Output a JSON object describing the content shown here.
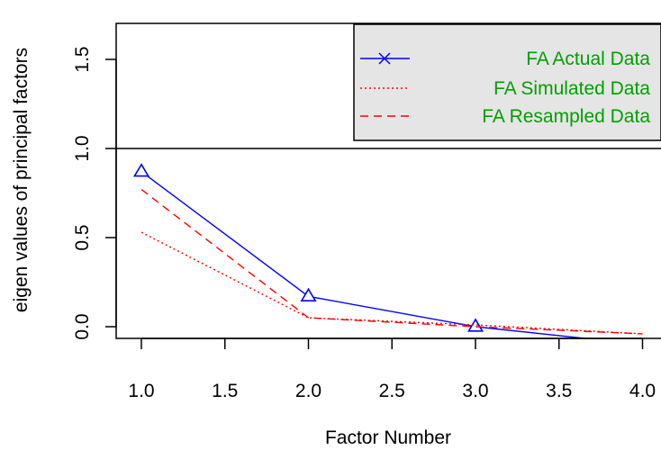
{
  "chart_data": {
    "type": "line",
    "title": "",
    "xlabel": "Factor Number",
    "ylabel": "eigen values of principal factors",
    "xlim": [
      1.0,
      4.0
    ],
    "ylim": [
      0.0,
      1.7
    ],
    "x_ticks": [
      "1.0",
      "1.5",
      "2.0",
      "2.5",
      "3.0",
      "3.5",
      "4.0"
    ],
    "y_ticks": [
      "0.0",
      "0.5",
      "1.0",
      "1.5"
    ],
    "reference_line": 1.0,
    "grid": false,
    "legend_position": "top-right",
    "series": [
      {
        "name": "FA  Actual Data",
        "color": "#0000ff",
        "line_style": "solid",
        "marker": "triangle",
        "x": [
          1,
          2,
          3,
          4
        ],
        "y": [
          0.87,
          0.17,
          0.0,
          -0.1
        ]
      },
      {
        "name": "FA  Simulated Data",
        "color": "#ff0000",
        "line_style": "dotted",
        "x": [
          1,
          2,
          3,
          4
        ],
        "y": [
          0.53,
          0.05,
          0.01,
          -0.04
        ]
      },
      {
        "name": "FA  Resampled Data",
        "color": "#ff0000",
        "line_style": "dashed",
        "x": [
          1,
          2,
          3,
          4
        ],
        "y": [
          0.77,
          0.05,
          0.0,
          -0.04
        ]
      }
    ]
  },
  "legend": {
    "background": "#e5e5e5",
    "text_color": "#00a000",
    "legend_marker": "x"
  }
}
